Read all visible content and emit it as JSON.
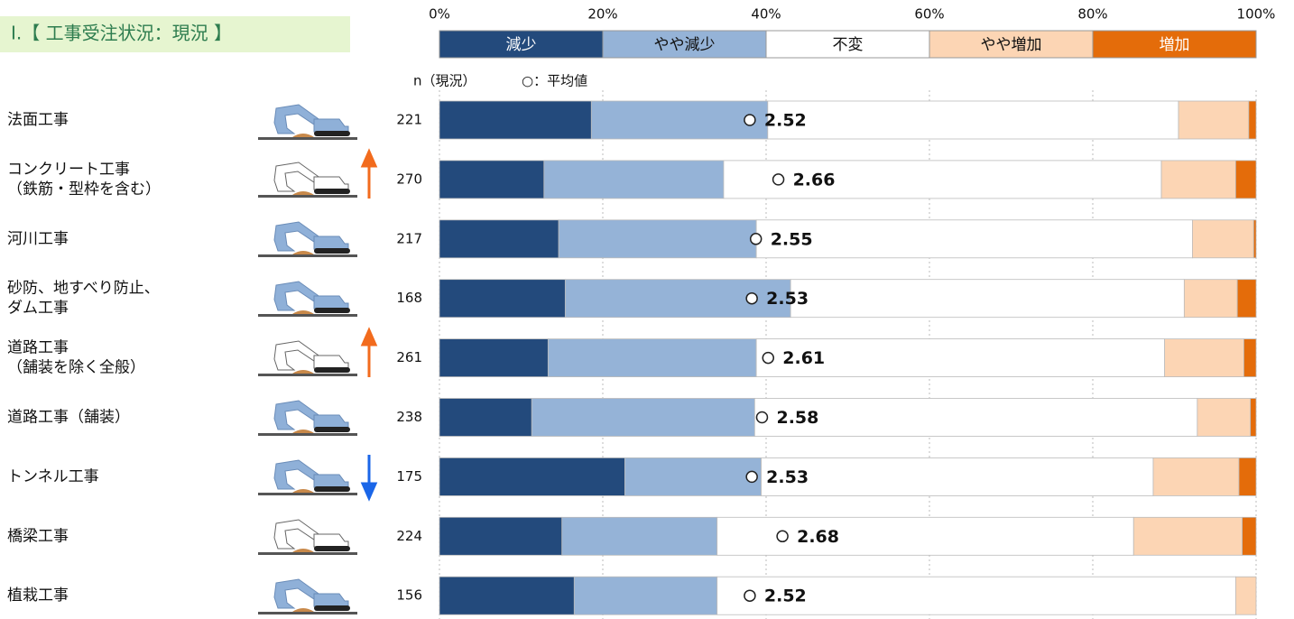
{
  "chart_data": {
    "type": "stacked_bar_100",
    "title": "Ⅰ.【 工事受注状況：現況 】",
    "n_label": "n（現況）",
    "mean_label": "○：平均値",
    "categories": [
      [
        "法面工事"
      ],
      [
        "コンクリート工事",
        "（鉄筋・型枠を含む）"
      ],
      [
        "河川工事"
      ],
      [
        "砂防、地すべり防止、",
        "ダム工事"
      ],
      [
        "道路工事",
        "（舗装を除く全般）"
      ],
      [
        "道路工事（舗装）"
      ],
      [
        "トンネル工事"
      ],
      [
        "橋梁工事"
      ],
      [
        "植栽工事"
      ]
    ],
    "n": [
      221,
      270,
      217,
      168,
      261,
      238,
      175,
      224,
      156
    ],
    "means": [
      2.52,
      2.66,
      2.55,
      2.53,
      2.61,
      2.58,
      2.53,
      2.68,
      2.52
    ],
    "series": [
      {
        "name": "減少",
        "color": "#234a7c",
        "values": [
          18.6,
          12.8,
          14.6,
          15.4,
          13.3,
          11.3,
          22.7,
          15.0,
          16.5
        ]
      },
      {
        "name": "やや減少",
        "color": "#95b3d7",
        "values": [
          21.6,
          22.0,
          24.2,
          27.6,
          25.5,
          27.3,
          16.7,
          19.0,
          17.5
        ]
      },
      {
        "name": "不変",
        "color": "#ffffff",
        "values": [
          50.3,
          53.6,
          53.4,
          48.2,
          50.0,
          54.2,
          48.0,
          51.0,
          63.5
        ]
      },
      {
        "name": "やや増加",
        "color": "#fcd5b4",
        "values": [
          8.6,
          9.1,
          7.5,
          6.5,
          9.7,
          6.5,
          10.5,
          13.3,
          2.5
        ]
      },
      {
        "name": "増加",
        "color": "#e46c0a",
        "values": [
          0.9,
          2.5,
          0.3,
          2.3,
          1.5,
          0.7,
          2.1,
          1.7,
          0
        ]
      }
    ],
    "xlim": [
      0,
      100
    ],
    "xticks": [
      {
        "value": 0,
        "label": "0%"
      },
      {
        "value": 20,
        "label": "20%"
      },
      {
        "value": 40,
        "label": "40%"
      },
      {
        "value": 60,
        "label": "60%"
      },
      {
        "value": 80,
        "label": "80%"
      },
      {
        "value": 100,
        "label": "100%"
      }
    ],
    "grid": true
  }
}
